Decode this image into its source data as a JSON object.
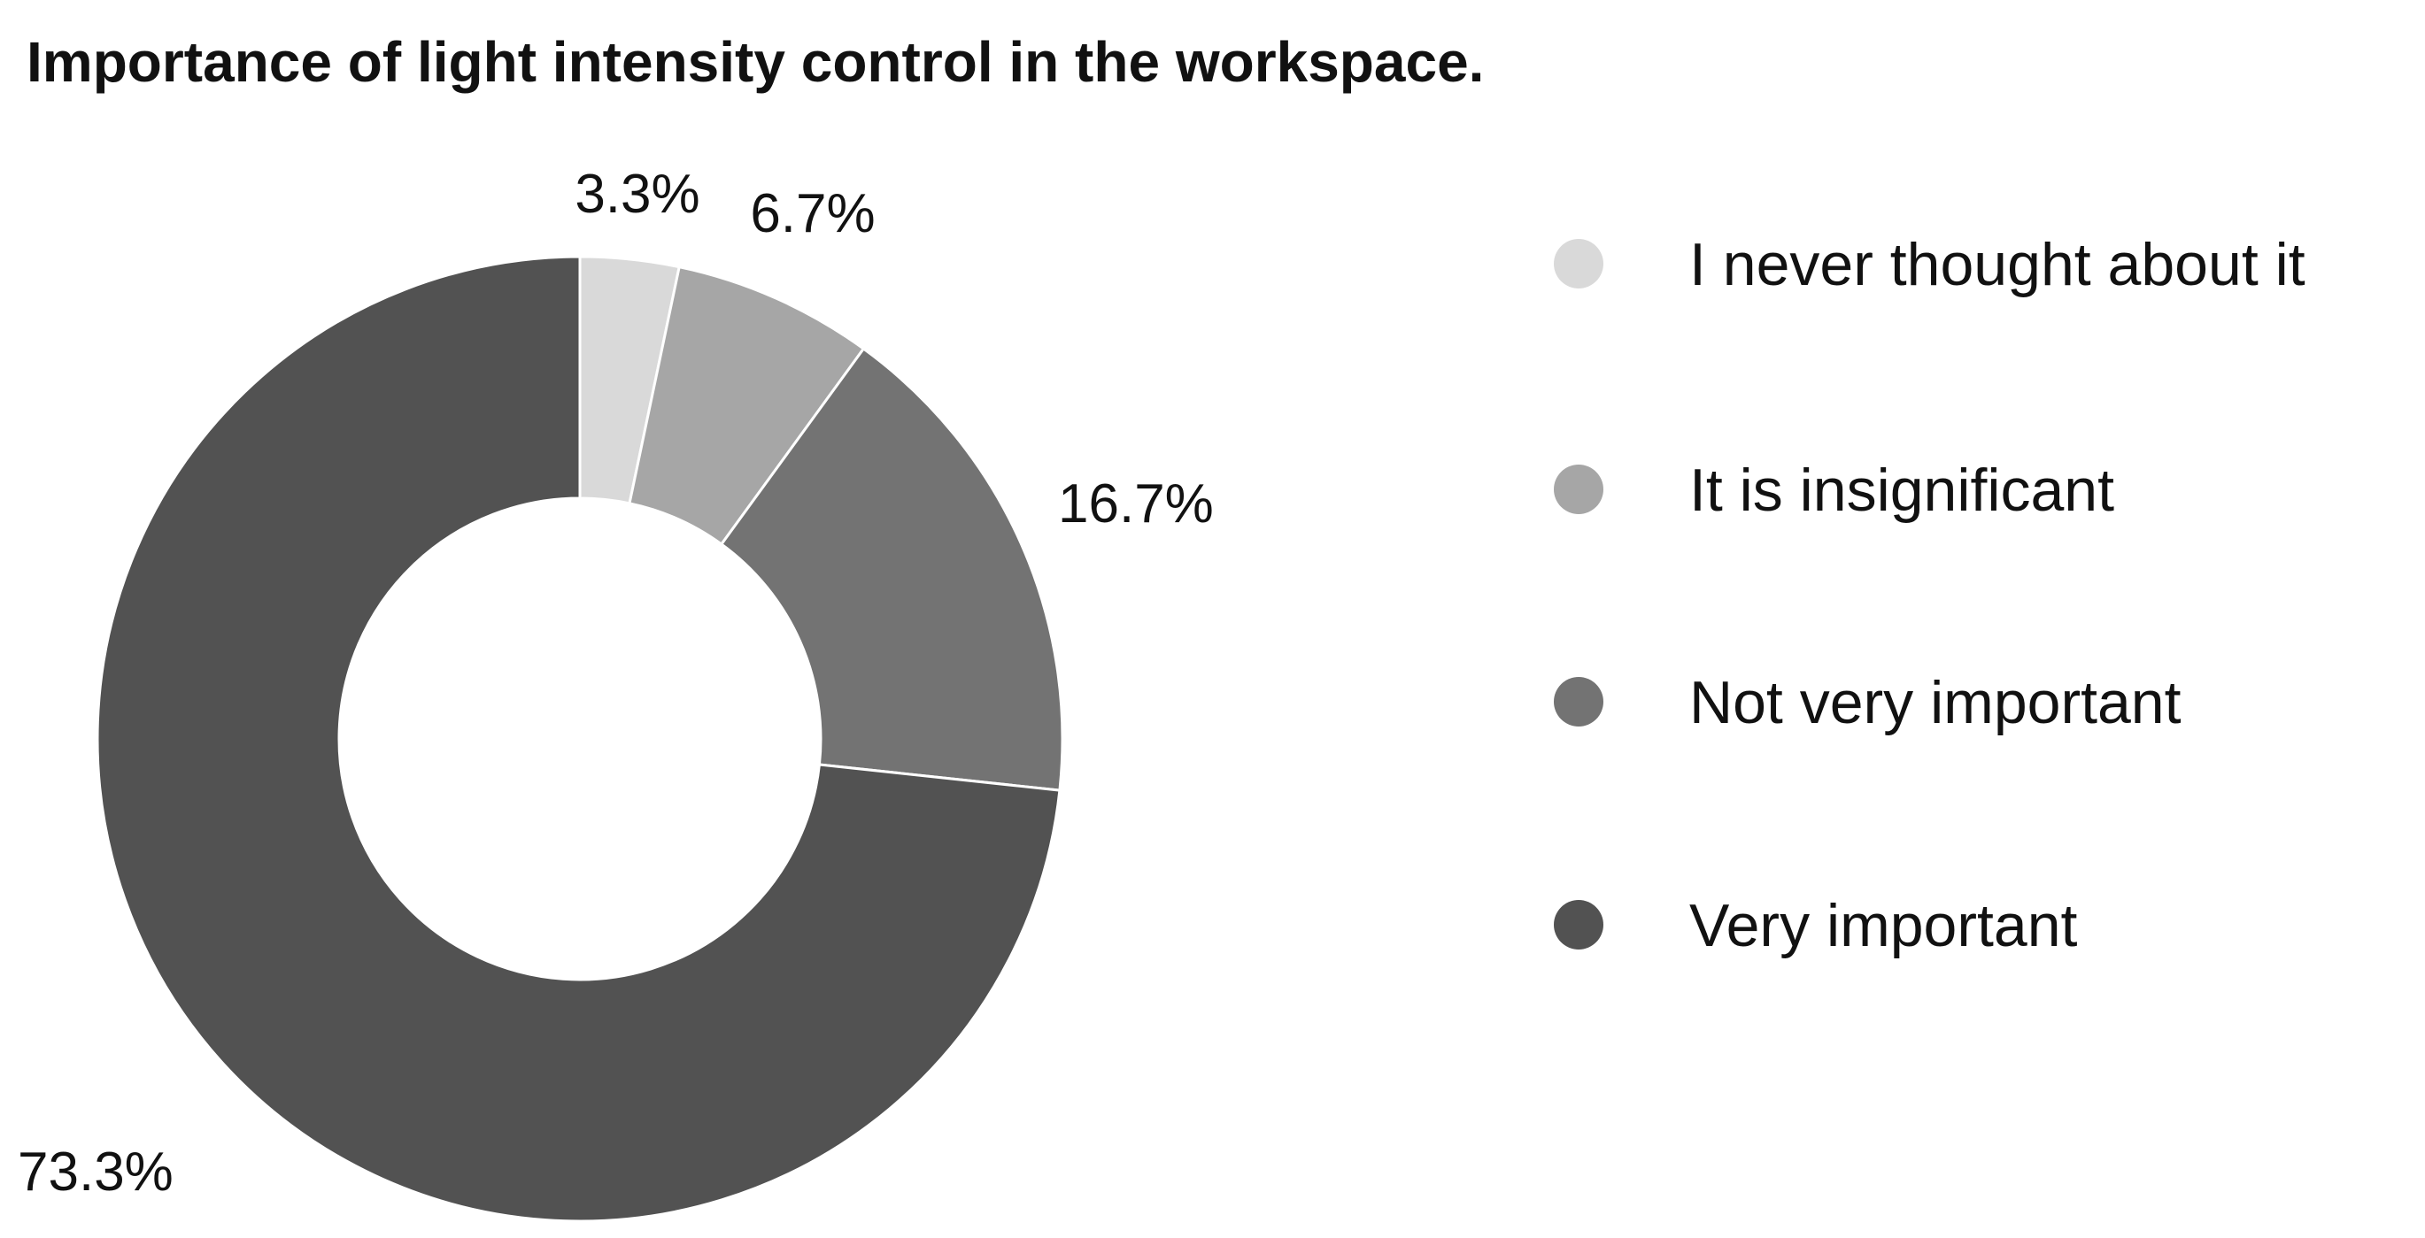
{
  "chart_data": {
    "type": "pie",
    "style": "donut",
    "title": "Importance of light intensity control in the workspace.",
    "categories": [
      "I never thought about it",
      "It is insignificant",
      "Not very important",
      "Very important"
    ],
    "values": [
      3.3,
      6.7,
      16.7,
      73.3
    ],
    "labels": [
      "3.3%",
      "6.7%",
      "16.7%",
      "73.3%"
    ],
    "colors": [
      "#d9d9d9",
      "#a6a6a6",
      "#737373",
      "#525252"
    ],
    "legend_position": "right",
    "start_angle": "top",
    "direction": "clockwise"
  }
}
